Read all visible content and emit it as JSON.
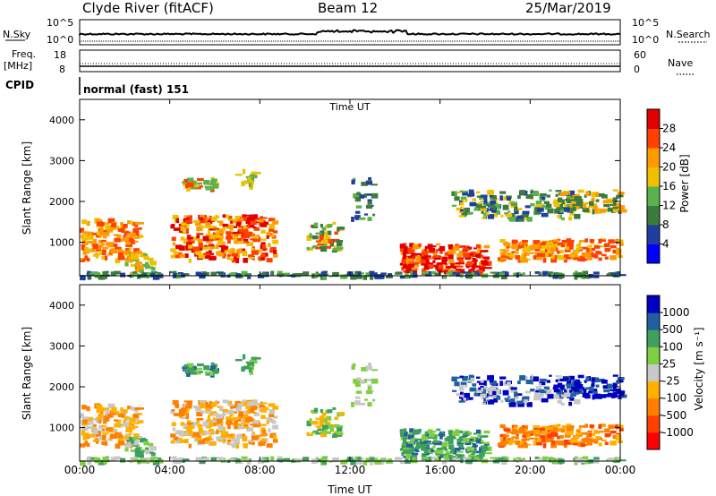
{
  "header": {
    "radar": "Clyde River (fitACF)",
    "beam": "Beam 12",
    "date": "25/Mar/2019"
  },
  "noise_panel": {
    "left_label": "N.Sky",
    "left_ticks": [
      "10^5",
      "10^0"
    ],
    "right_ticks": [
      "10^5",
      "10^0"
    ],
    "right_label": "N.Search"
  },
  "freq_panel": {
    "left_label_1": "Freq.",
    "left_label_2": "[MHz]",
    "left_ticks": [
      "18",
      "8"
    ],
    "right_ticks": [
      "60",
      "0"
    ],
    "right_label": "Nave"
  },
  "cpid": {
    "label": "CPID",
    "value": "normal (fast) 151"
  },
  "colors": {
    "scale": [
      "#0000ff",
      "#1f3fa0",
      "#3d7a3d",
      "#5ab24a",
      "#f0c000",
      "#ff9a00",
      "#ff4000",
      "#e00000"
    ],
    "velocity_scale": [
      "#ff0000",
      "#ff4000",
      "#ff7f00",
      "#ffb000",
      "#c8c8c8",
      "#7fd040",
      "#3f9f5f",
      "#2060a0",
      "#0000c0"
    ]
  },
  "chart_data": [
    {
      "type": "heatmap",
      "title": "",
      "xlabel": "Time UT",
      "ylabel": "Slant Range [km]",
      "x_ticks": [
        "00:00",
        "04:00",
        "08:00",
        "12:00",
        "16:00",
        "20:00",
        "00:00"
      ],
      "y_ticks": [
        "1000",
        "2000",
        "3000",
        "4000"
      ],
      "ylim": [
        180,
        4500
      ],
      "colorbar_label": "Power [dB]",
      "colorbar_ticks": [
        "4",
        "8",
        "12",
        "16",
        "20",
        "24",
        "28"
      ]
    },
    {
      "type": "heatmap",
      "title": "",
      "xlabel": "Time UT",
      "ylabel": "Slant Range [km]",
      "x_ticks": [
        "00:00",
        "04:00",
        "08:00",
        "12:00",
        "16:00",
        "20:00",
        "00:00"
      ],
      "y_ticks": [
        "1000",
        "2000",
        "3000",
        "4000"
      ],
      "ylim": [
        180,
        4500
      ],
      "colorbar_label": "Velocity [m s⁻¹]",
      "colorbar_ticks": [
        "1000",
        "500",
        "100",
        "25",
        "-25",
        "-100",
        "-500",
        "-1000"
      ]
    }
  ]
}
